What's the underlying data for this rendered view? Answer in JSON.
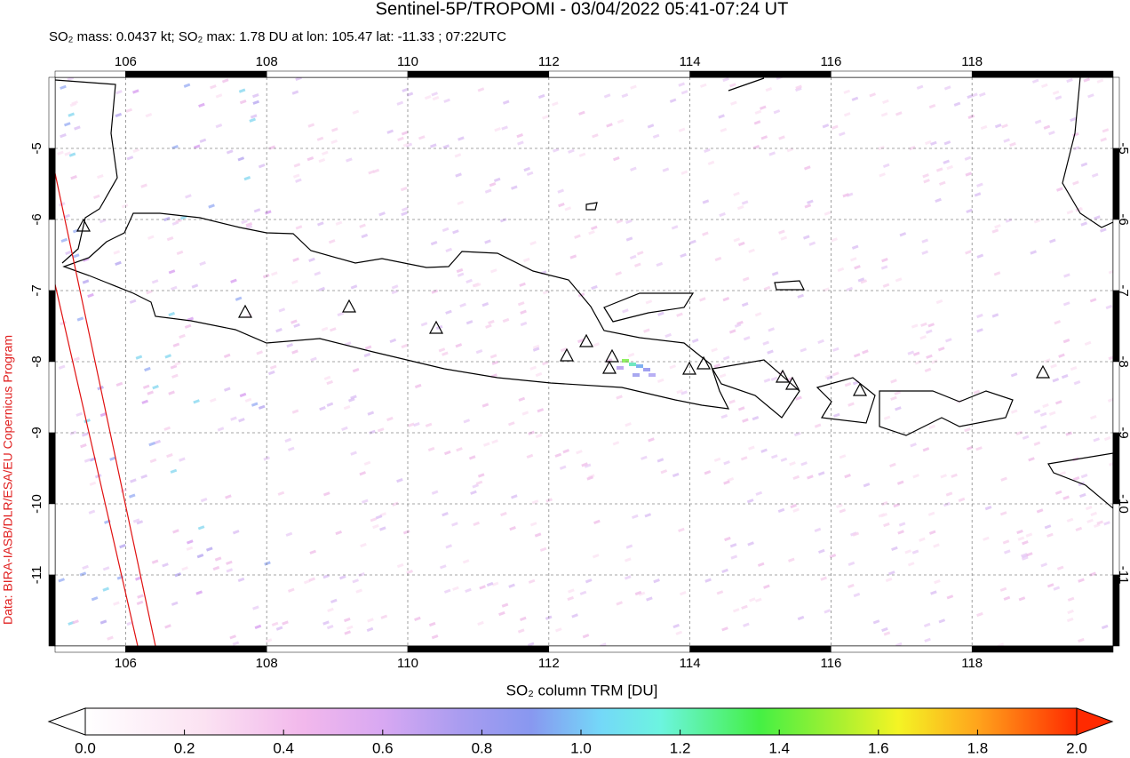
{
  "title": "Sentinel-5P/TROPOMI - 03/04/2022 05:41-07:24 UT",
  "subtitle": "SO₂ mass: 0.0437 kt; SO₂ max: 1.78 DU at lon: 105.47 lat: -11.33 ; 07:22UTC",
  "credit": "Data: BIRA-IASB/DLR/ESA/EU Copernicus Program",
  "map": {
    "lon_range": [
      105,
      120
    ],
    "lat_range": [
      -12,
      -4
    ],
    "lon_ticks": [
      106,
      108,
      110,
      112,
      114,
      116,
      118
    ],
    "lat_ticks": [
      -5,
      -6,
      -7,
      -8,
      -9,
      -10,
      -11
    ]
  },
  "colorbar": {
    "label": "SO₂ column TRM [DU]",
    "range": [
      0,
      2
    ],
    "ticks": [
      {
        "value": 0,
        "label": "0.0"
      },
      {
        "value": 0.2,
        "label": "0.2"
      },
      {
        "value": 0.4,
        "label": "0.4"
      },
      {
        "value": 0.6,
        "label": "0.6"
      },
      {
        "value": 0.8,
        "label": "0.8"
      },
      {
        "value": 1,
        "label": "1.0"
      },
      {
        "value": 1.2,
        "label": "1.2"
      },
      {
        "value": 1.4,
        "label": "1.4"
      },
      {
        "value": 1.6,
        "label": "1.6"
      },
      {
        "value": 1.8,
        "label": "1.8"
      },
      {
        "value": 2,
        "label": "2.0"
      }
    ]
  }
}
